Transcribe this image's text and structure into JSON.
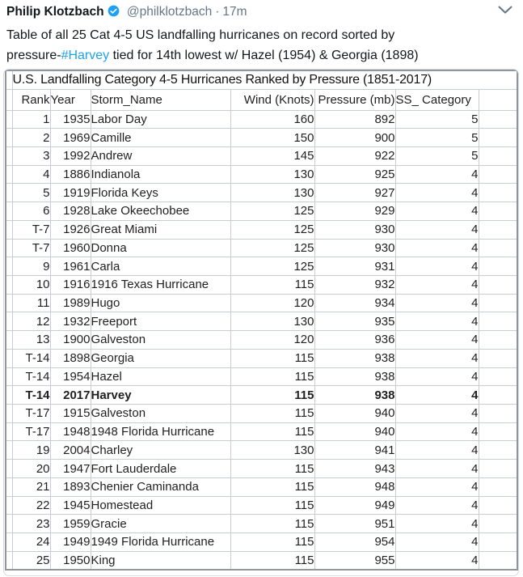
{
  "tweet": {
    "author": "Philip Klotzbach",
    "handle": "@philklotzbach",
    "separator": "·",
    "timestamp": "17m",
    "line1": "Table of all 25 Cat 4-5 US landfalling hurricanes on record sorted by",
    "line2_pre": "pressure-",
    "hashtag": "#Harvey",
    "line2_post": " tied for 14th lowest w/ Hazel (1954) & Georgia (1898)"
  },
  "colors": {
    "accent": "#1da1f2",
    "text": "#14171a",
    "muted": "#657786",
    "grid": "#c7cdd4",
    "table_border": "#8f969e"
  },
  "table": {
    "title": "U.S. Landfalling Category 4-5 Hurricanes Ranked by Pressure (1851-2017)",
    "columns": [
      "Rank",
      "Year",
      "Storm_Name",
      "Wind (Knots)",
      "Pressure (mb)",
      "SS_ Category"
    ],
    "bold_row_index": 15,
    "rows": [
      {
        "rank": "1",
        "year": "1935",
        "name": "Labor Day",
        "wind": "160",
        "pressure": "892",
        "category": "5"
      },
      {
        "rank": "2",
        "year": "1969",
        "name": "Camille",
        "wind": "150",
        "pressure": "900",
        "category": "5"
      },
      {
        "rank": "3",
        "year": "1992",
        "name": "Andrew",
        "wind": "145",
        "pressure": "922",
        "category": "5"
      },
      {
        "rank": "4",
        "year": "1886",
        "name": "Indianola",
        "wind": "130",
        "pressure": "925",
        "category": "4"
      },
      {
        "rank": "5",
        "year": "1919",
        "name": "Florida Keys",
        "wind": "130",
        "pressure": "927",
        "category": "4"
      },
      {
        "rank": "6",
        "year": "1928",
        "name": "Lake Okeechobee",
        "wind": "125",
        "pressure": "929",
        "category": "4"
      },
      {
        "rank": "T-7",
        "year": "1926",
        "name": "Great Miami",
        "wind": "125",
        "pressure": "930",
        "category": "4"
      },
      {
        "rank": "T-7",
        "year": "1960",
        "name": "Donna",
        "wind": "125",
        "pressure": "930",
        "category": "4"
      },
      {
        "rank": "9",
        "year": "1961",
        "name": "Carla",
        "wind": "125",
        "pressure": "931",
        "category": "4"
      },
      {
        "rank": "10",
        "year": "1916",
        "name": "1916 Texas Hurricane",
        "wind": "115",
        "pressure": "932",
        "category": "4"
      },
      {
        "rank": "11",
        "year": "1989",
        "name": "Hugo",
        "wind": "120",
        "pressure": "934",
        "category": "4"
      },
      {
        "rank": "12",
        "year": "1932",
        "name": "Freeport",
        "wind": "130",
        "pressure": "935",
        "category": "4"
      },
      {
        "rank": "13",
        "year": "1900",
        "name": "Galveston",
        "wind": "120",
        "pressure": "936",
        "category": "4"
      },
      {
        "rank": "T-14",
        "year": "1898",
        "name": "Georgia",
        "wind": "115",
        "pressure": "938",
        "category": "4"
      },
      {
        "rank": "T-14",
        "year": "1954",
        "name": "Hazel",
        "wind": "115",
        "pressure": "938",
        "category": "4"
      },
      {
        "rank": "T-14",
        "year": "2017",
        "name": "Harvey",
        "wind": "115",
        "pressure": "938",
        "category": "4"
      },
      {
        "rank": "T-17",
        "year": "1915",
        "name": "Galveston",
        "wind": "115",
        "pressure": "940",
        "category": "4"
      },
      {
        "rank": "T-17",
        "year": "1948",
        "name": "1948 Florida Hurricane",
        "wind": "115",
        "pressure": "940",
        "category": "4"
      },
      {
        "rank": "19",
        "year": "2004",
        "name": "Charley",
        "wind": "130",
        "pressure": "941",
        "category": "4"
      },
      {
        "rank": "20",
        "year": "1947",
        "name": "Fort Lauderdale",
        "wind": "115",
        "pressure": "943",
        "category": "4"
      },
      {
        "rank": "21",
        "year": "1893",
        "name": "Chenier Caminanda",
        "wind": "115",
        "pressure": "948",
        "category": "4"
      },
      {
        "rank": "22",
        "year": "1945",
        "name": "Homestead",
        "wind": "115",
        "pressure": "949",
        "category": "4"
      },
      {
        "rank": "23",
        "year": "1959",
        "name": "Gracie",
        "wind": "115",
        "pressure": "951",
        "category": "4"
      },
      {
        "rank": "24",
        "year": "1949",
        "name": "1949 Florida Hurricane",
        "wind": "115",
        "pressure": "954",
        "category": "4"
      },
      {
        "rank": "25",
        "year": "1950",
        "name": "King",
        "wind": "115",
        "pressure": "955",
        "category": "4"
      }
    ]
  }
}
